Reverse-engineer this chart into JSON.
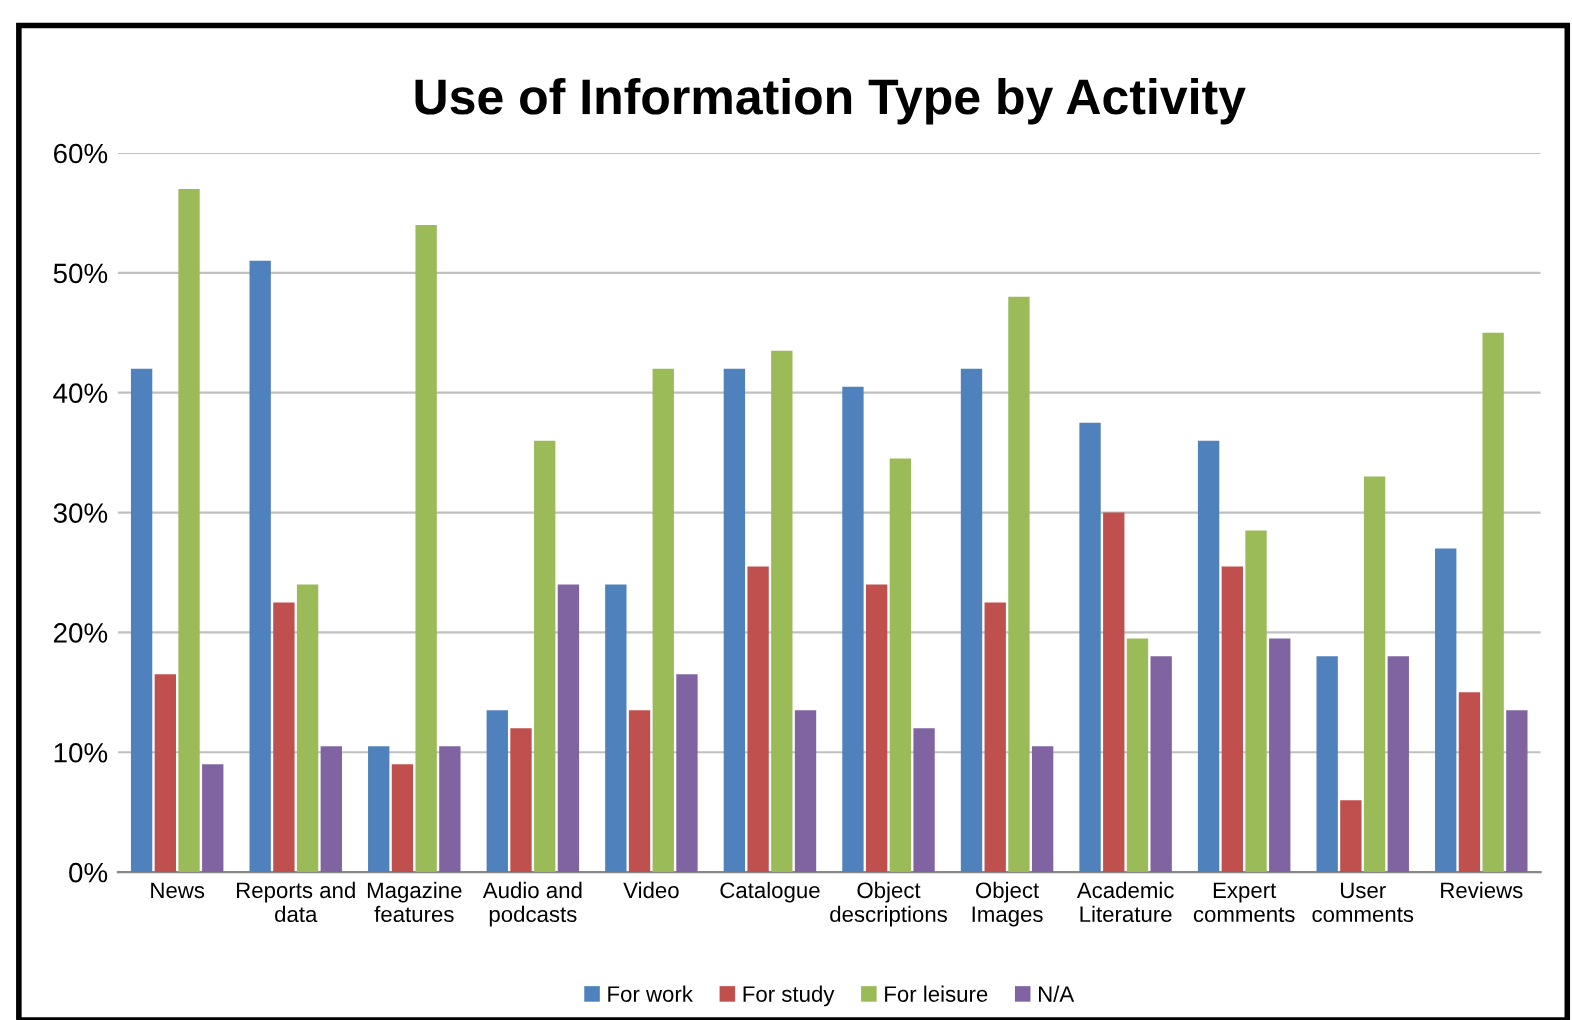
{
  "chart_data": {
    "type": "bar",
    "title": "Use of Information Type by Activity",
    "categories": [
      "News",
      "Reports and\ndata",
      "Magazine\nfeatures",
      "Audio and\npodcasts",
      "Video",
      "Catalogue",
      "Object\ndescriptions",
      "Object\nImages",
      "Academic\nLiterature",
      "Expert\ncomments",
      "User\ncomments",
      "Reviews"
    ],
    "series": [
      {
        "name": "For work",
        "color": "#4f81bd",
        "values": [
          42,
          51,
          10.5,
          13.5,
          24,
          42,
          40.5,
          42,
          37.5,
          36,
          18,
          27
        ]
      },
      {
        "name": "For study",
        "color": "#c0504d",
        "values": [
          16.5,
          22.5,
          9,
          12,
          13.5,
          25.5,
          24,
          22.5,
          30,
          25.5,
          6,
          15
        ]
      },
      {
        "name": "For leisure",
        "color": "#9bbb59",
        "values": [
          57,
          24,
          54,
          36,
          42,
          43.5,
          34.5,
          48,
          19.5,
          28.5,
          33,
          45
        ]
      },
      {
        "name": "N/A",
        "color": "#8064a2",
        "values": [
          9,
          10.5,
          10.5,
          24,
          16.5,
          13.5,
          12,
          10.5,
          18,
          19.5,
          18,
          13.5
        ]
      }
    ],
    "ylim": [
      0,
      60
    ],
    "yticks": [
      {
        "value": 0,
        "label": "0%"
      },
      {
        "value": 10,
        "label": "10%"
      },
      {
        "value": 20,
        "label": "20%"
      },
      {
        "value": 30,
        "label": "30%"
      },
      {
        "value": 40,
        "label": "40%"
      },
      {
        "value": 50,
        "label": "50%"
      },
      {
        "value": 60,
        "label": "60%"
      }
    ],
    "grid": "y",
    "legend": "bottom"
  }
}
